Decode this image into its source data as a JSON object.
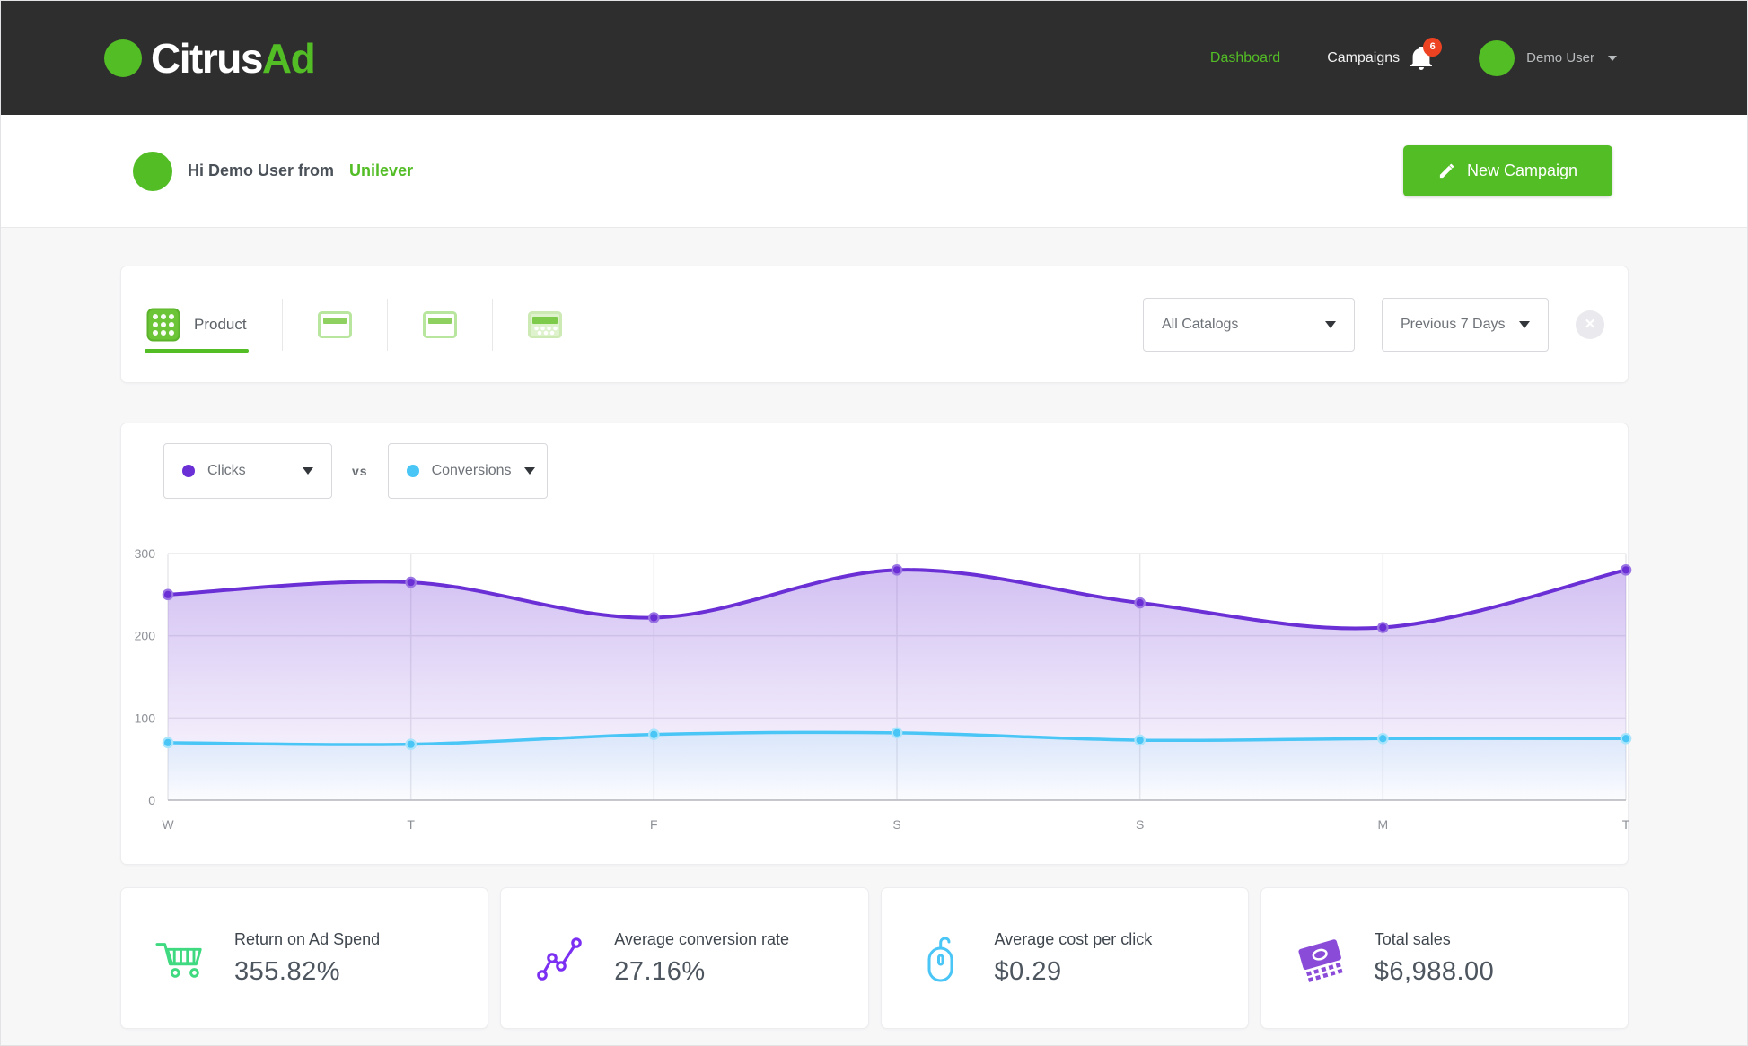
{
  "brand": {
    "name_primary": "Citrus",
    "name_secondary": "Ad"
  },
  "nav": {
    "dashboard_label": "Dashboard",
    "campaigns_label": "Campaigns",
    "notifications_count": "6",
    "user_name": "Demo User"
  },
  "welcome": {
    "greeting": "Hi Demo User from",
    "company": "Unilever",
    "new_campaign_label": "New Campaign"
  },
  "toolbar": {
    "product_tab_label": "Product",
    "catalog_filter_value": "All Catalogs",
    "date_filter_value": "Previous 7 Days",
    "close_label": "✕"
  },
  "chart_panel": {
    "vs_label": "vs"
  },
  "chart_data": {
    "type": "line",
    "title": "Clicks vs Conversions — Previous 7 Days",
    "categories": [
      "W",
      "T",
      "F",
      "S",
      "S",
      "M",
      "T"
    ],
    "series": [
      {
        "name": "Clicks",
        "color": "#6b2fd6",
        "dot_stroke": "#9a74e3",
        "fill_opacity": 0.3,
        "values": [
          250,
          265,
          222,
          280,
          240,
          210,
          280
        ]
      },
      {
        "name": "Conversions",
        "color": "#49c5f6",
        "dot_stroke": "#a8e4fb",
        "fill_opacity": 0.14,
        "values": [
          70,
          68,
          80,
          82,
          73,
          75,
          75
        ]
      }
    ],
    "ylim": [
      0,
      300
    ],
    "yticks": [
      0,
      100,
      200,
      300
    ],
    "grid": true,
    "legend_position": "top-left"
  },
  "stats": [
    {
      "label": "Return on Ad Spend",
      "value": "355.82%",
      "icon": "cart-icon",
      "color": "#3fd980"
    },
    {
      "label": "Average conversion rate",
      "value": "27.16%",
      "icon": "trend-icon",
      "color": "#7b2ff2"
    },
    {
      "label": "Average cost per click",
      "value": "$0.29",
      "icon": "mouse-icon",
      "color": "#49c5f6"
    },
    {
      "label": "Total sales",
      "value": "$6,988.00",
      "icon": "money-icon",
      "color": "#8a4bd8"
    }
  ],
  "colors": {
    "header_bg": "#2e2e2e",
    "brand_green": "#53bd26",
    "accent_purple": "#6b2fd6",
    "accent_blue": "#49c5f6",
    "badge_red": "#ee4323",
    "page_bg": "#f7f7f8"
  }
}
